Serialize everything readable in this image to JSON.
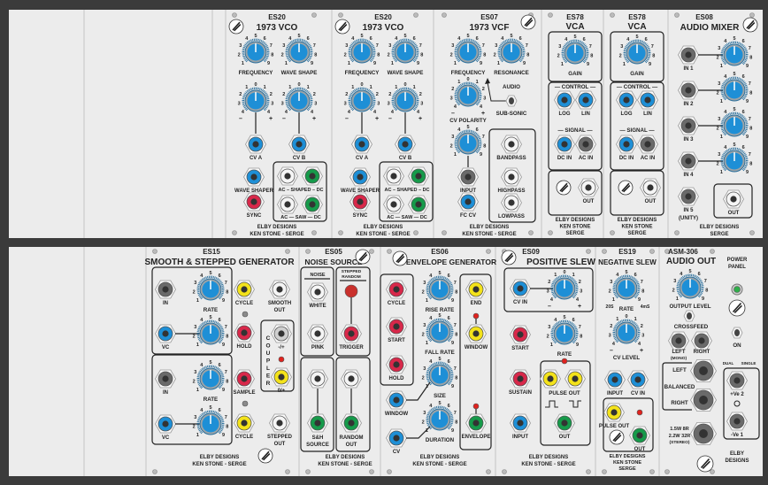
{
  "colors": {
    "background": "#3b3b3b",
    "panel": "#ececec",
    "knob": "#1e8fd6",
    "knob_ring": "#9aa3a8",
    "jack_blue": "#1e8fd6",
    "jack_red": "#d8284a",
    "jack_yellow": "#f3e21a",
    "jack_green": "#169a4a",
    "jack_white": "#f5f5f5",
    "jack_gray": "#6a6a6a",
    "led_red": "#e0221e",
    "led_green": "#2fae4a"
  },
  "knob_scales": {
    "unipolar": [
      "1",
      "2",
      "3",
      "4",
      "5",
      "6",
      "7",
      "8",
      "9"
    ],
    "bipolar": [
      "4",
      "3",
      "2",
      "1",
      "0",
      "1",
      "2",
      "3",
      "4"
    ],
    "signs": [
      "–",
      "+"
    ]
  },
  "es20_1": {
    "code": "ES20",
    "title": "1973 VCO",
    "frequency": "FREQUENCY",
    "wave_shape": "WAVE SHAPE",
    "cv_a": "CV A",
    "cv_b": "CV B",
    "wave_shaper": "WAVE SHAPER",
    "sync": "SYNC",
    "shaped": "AC – SHAPED – DC",
    "saw": "AC — SAW — DC",
    "maker1": "ELBY DESIGNS",
    "maker2": "KEN STONE - SERGE"
  },
  "es20_2": {
    "code": "ES20",
    "title": "1973 VCO",
    "frequency": "FREQUENCY",
    "wave_shape": "WAVE SHAPE",
    "cv_a": "CV A",
    "cv_b": "CV B",
    "wave_shaper": "WAVE SHAPER",
    "sync": "SYNC",
    "shaped": "AC – SHAPED – DC",
    "saw": "AC — SAW — DC",
    "maker1": "ELBY DESIGNS",
    "maker2": "KEN STONE - SERGE"
  },
  "es07": {
    "code": "ES07",
    "title": "1973 VCF",
    "frequency": "FREQUENCY",
    "resonance": "RESONANCE",
    "audio": "AUDIO",
    "sub_sonic": "SUB-SONIC",
    "cv_polarity": "CV POLARITY",
    "input": "INPUT",
    "fc_cv": "FC CV",
    "bandpass": "BANDPASS",
    "highpass": "HIGHPASS",
    "lowpass": "LOWPASS",
    "maker1": "ELBY DESIGNS",
    "maker2": "KEN STONE - SERGE"
  },
  "es78_1": {
    "code": "ES78",
    "title": "VCA",
    "gain": "GAIN",
    "control": "— CONTROL —",
    "log": "LOG",
    "lin": "LIN",
    "signal": "— SIGNAL —",
    "dc_in": "DC IN",
    "ac_in": "AC IN",
    "out": "OUT",
    "maker1": "ELBY DESIGNS",
    "maker2": "KEN STONE",
    "maker3": "SERGE"
  },
  "es78_2": {
    "code": "ES78",
    "title": "VCA",
    "gain": "GAIN",
    "control": "— CONTROL —",
    "log": "LOG",
    "lin": "LIN",
    "signal": "— SIGNAL —",
    "dc_in": "DC IN",
    "ac_in": "AC IN",
    "out": "OUT",
    "maker1": "ELBY DESIGNS",
    "maker2": "KEN STONE",
    "maker3": "SERGE"
  },
  "es08": {
    "code": "ES08",
    "title": "AUDIO MIXER",
    "in1": "IN 1",
    "in2": "IN 2",
    "in3": "IN 3",
    "in4": "IN 4",
    "in5": "IN 5",
    "unity": "(UNITY)",
    "out": "OUT",
    "maker1": "ELBY DESIGNS",
    "maker2": "SERGE"
  },
  "es15": {
    "code": "ES15",
    "title": "SMOOTH & STEPPED GENERATOR",
    "in": "IN",
    "rate": "RATE",
    "vc": "VC",
    "cycle": "CYCLE",
    "hold": "HOLD",
    "sample": "SAMPLE",
    "smooth": "SMOOTH",
    "stepped": "STEPPED",
    "out": "OUT",
    "coupler": [
      "C",
      "O",
      "U",
      "P",
      "L",
      "E",
      "R"
    ],
    "minus_plus": "-/+",
    "zero_plus": "0/+",
    "maker1": "ELBY DESIGNS",
    "maker2": "KEN STONE - SERGE"
  },
  "es05": {
    "code": "ES05",
    "title": "NOISE SOURCE",
    "noise": "NOISE",
    "stepped": "STEPPED",
    "random": "RANDOM",
    "white": "WHITE",
    "pink": "PINK",
    "trigger": "TRIGGER",
    "sh": "S&H",
    "source": "SOURCE",
    "random_out1": "RANDOM",
    "random_out2": "OUT",
    "maker1": "ELBY DESIGNS",
    "maker2": "KEN STONE - SERGE"
  },
  "es06": {
    "code": "ES06",
    "title": "ENVELOPE GENERATOR",
    "cycle": "CYCLE",
    "start": "START",
    "hold": "HOLD",
    "rise_rate": "RISE RATE",
    "fall_rate": "FALL RATE",
    "size": "SIZE",
    "duration": "DURATION",
    "window_in": "WINDOW",
    "cv": "CV",
    "end": "END",
    "window_out": "WINDOW",
    "envelope": "ENVELOPE",
    "maker1": "ELBY DESIGNS",
    "maker2": "KEN STONE - SERGE"
  },
  "es09": {
    "code": "ES09",
    "title": "POSITIVE SLEW",
    "cv_in": "CV IN",
    "start": "START",
    "rate": "RATE",
    "sustain": "SUSTAIN",
    "pulse_out": "PULSE OUT",
    "out": "OUT",
    "input": "INPUT",
    "maker1": "ELBY DESIGNS",
    "maker2": "KEN STONE - SERGE"
  },
  "es19": {
    "code": "ES19",
    "title": "NEGATIVE SLEW",
    "rate": "RATE",
    "slow": "20S",
    "fast": "4mS",
    "cv_level": "CV LEVEL",
    "input": "INPUT",
    "cv_in": "CV IN",
    "pulse_out": "PULSE OUT",
    "out": "OUT",
    "maker1": "ELBY DESIGNS",
    "maker2": "KEN STONE",
    "maker3": "SERGE"
  },
  "asm306": {
    "code": "ASM-306",
    "title": "AUDIO OUT",
    "output_level": "OUTPUT LEVEL",
    "crossfeed": "CROSSFEED",
    "left": "LEFT",
    "mono": "(MONO)",
    "right": "RIGHT",
    "bal_left": "LEFT",
    "balanced": "BALANCED",
    "bal_right": "RIGHT",
    "spk1": "1.5W 8R",
    "spk2": "2.2W 32R",
    "stereo": "(STEREO)"
  },
  "power": {
    "title1": "POWER",
    "title2": "PANEL",
    "on": "ON",
    "dual": "DUAL",
    "single": "SINGLE",
    "pos": "+Ve  2",
    "neg": "-Ve  1",
    "maker1": "ELBY",
    "maker2": "DESIGNS"
  }
}
